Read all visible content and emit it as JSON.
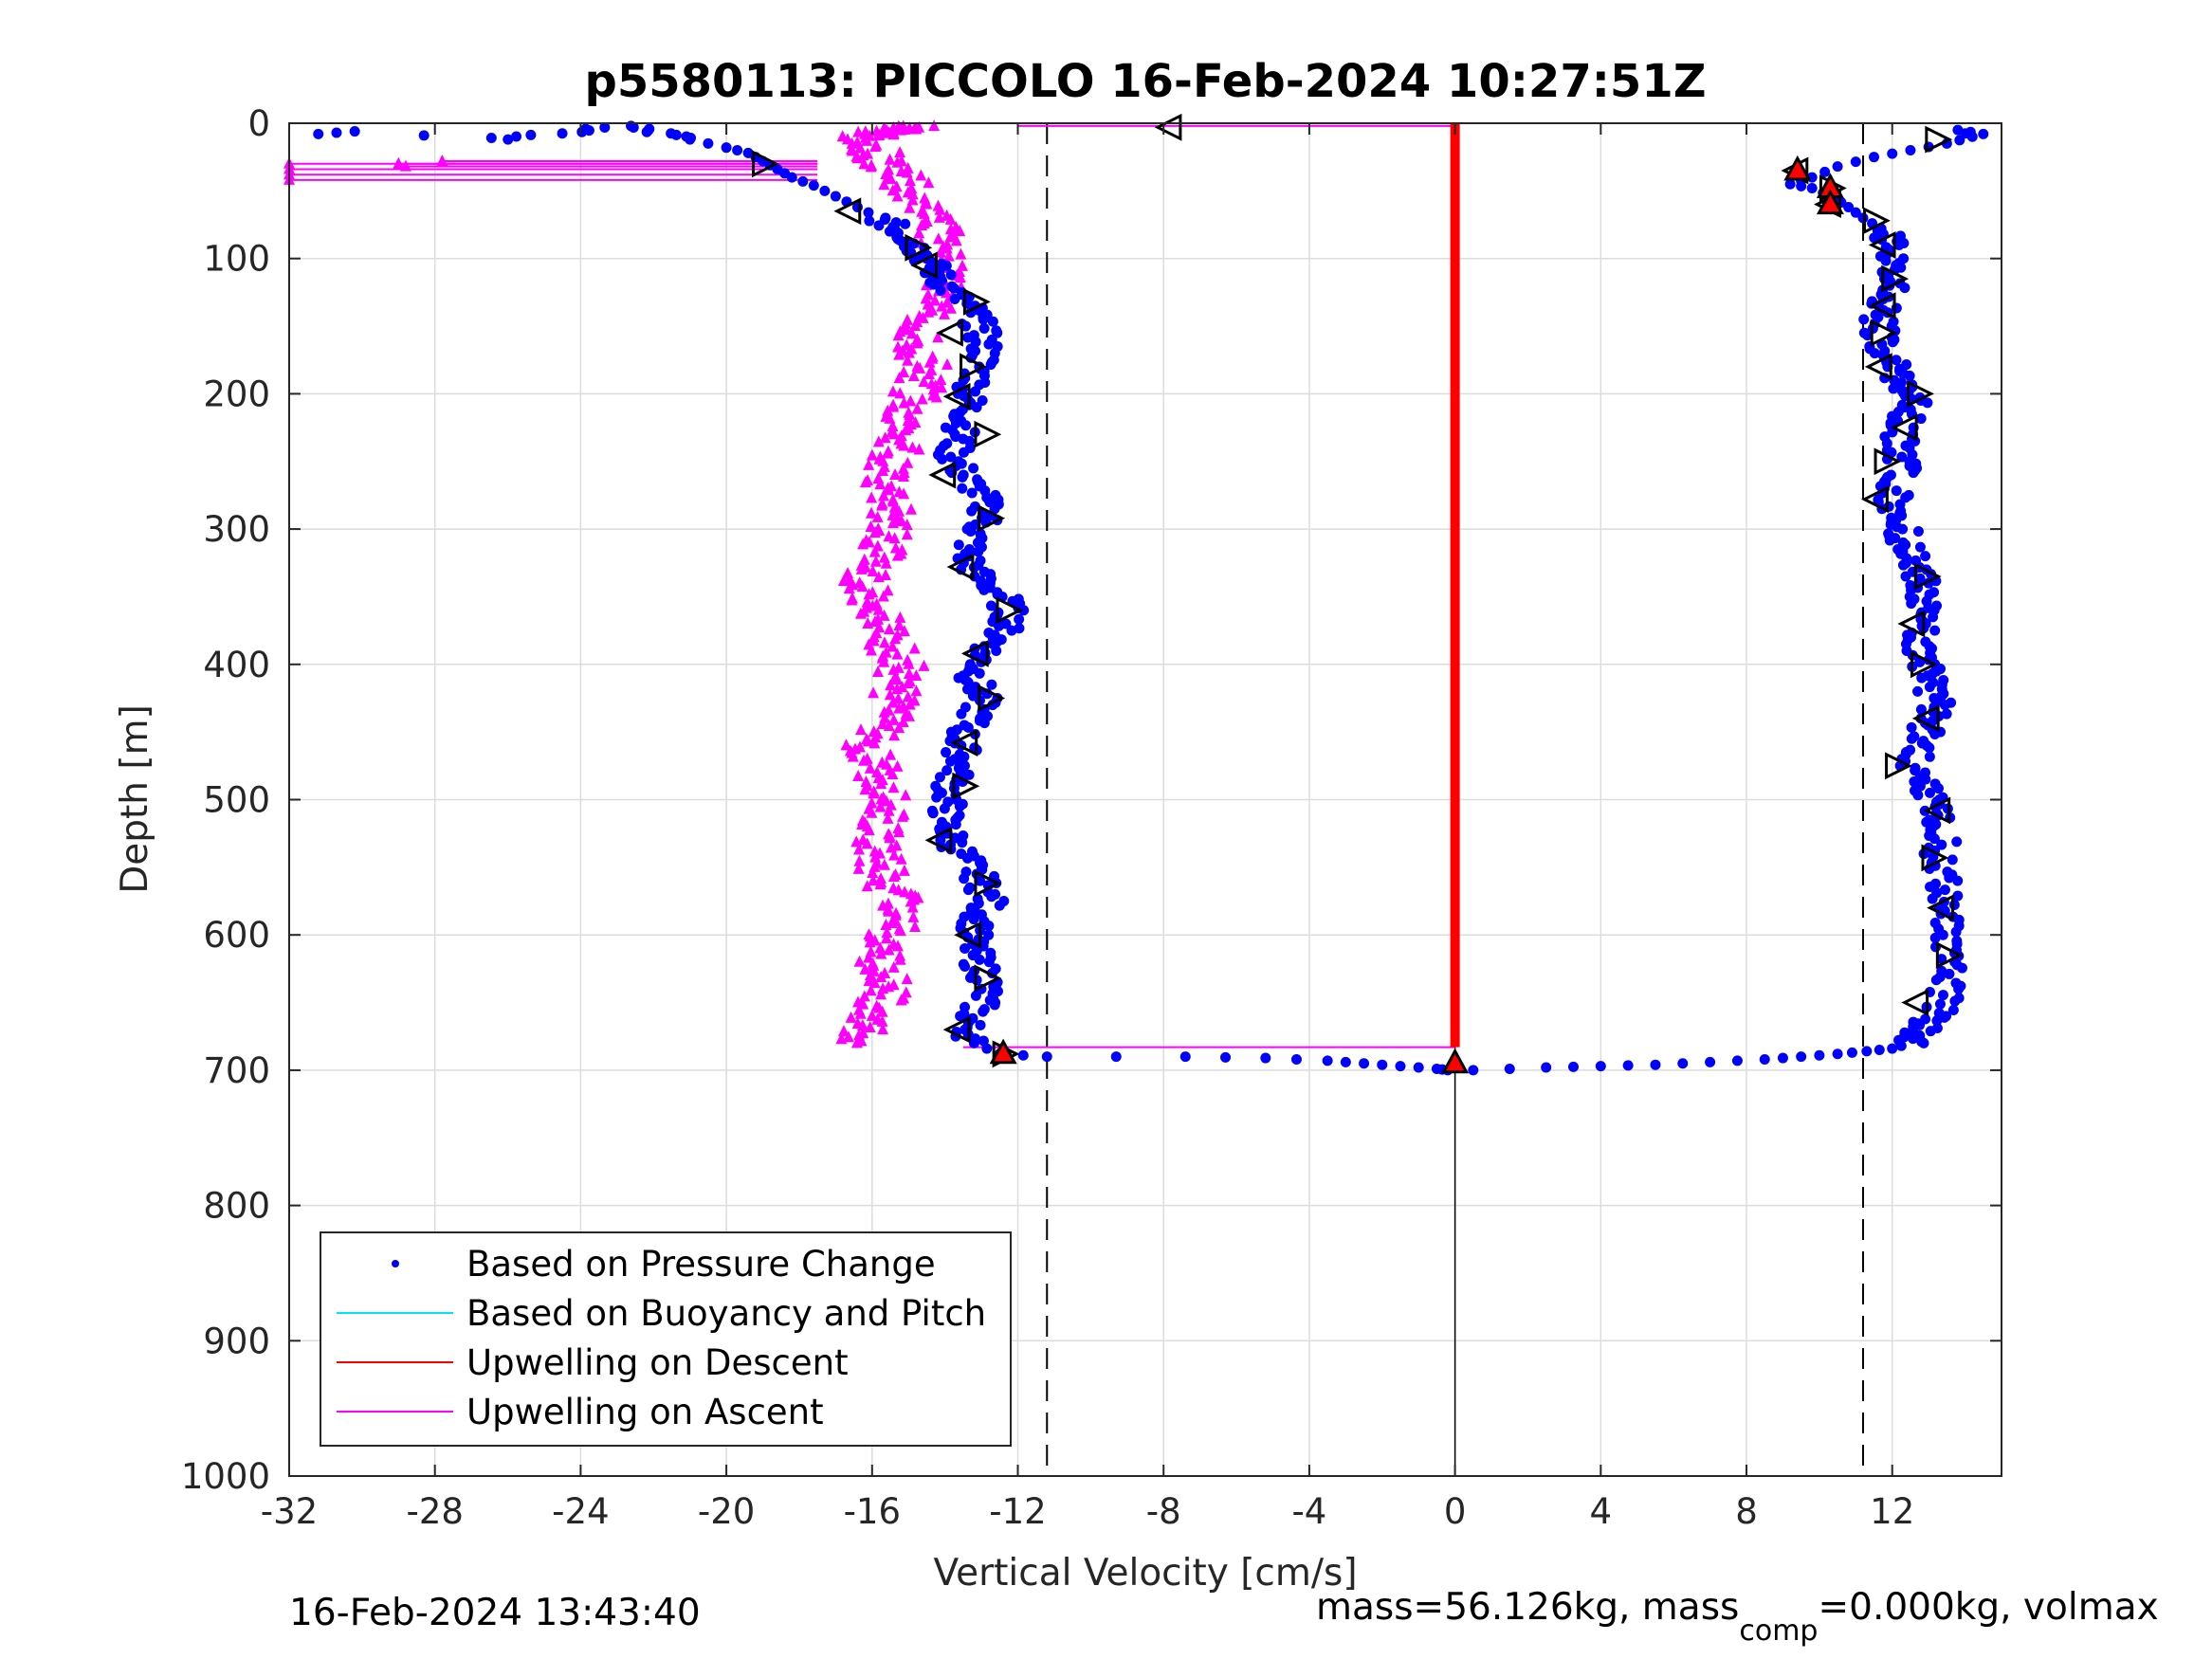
{
  "chart_data": {
    "type": "scatter",
    "title": "p5580113: PICCOLO 16-Feb-2024 10:27:51Z",
    "xlabel": "Vertical Velocity [cm/s]",
    "ylabel": "Depth [m]",
    "xlim": [
      -32,
      15
    ],
    "ylim": [
      0,
      1000
    ],
    "y_reversed": true,
    "grid": true,
    "xticks": [
      -32,
      -28,
      -24,
      -20,
      -16,
      -12,
      -8,
      -4,
      0,
      4,
      8,
      12
    ],
    "yticks": [
      0,
      100,
      200,
      300,
      400,
      500,
      600,
      700,
      800,
      900,
      1000
    ],
    "dashed_lines_x": [
      -11.2,
      11.2
    ],
    "zero_line_x": 0,
    "legend_position": "bottom-left",
    "legend": [
      {
        "label": "Based on Pressure Change",
        "marker": "dot",
        "color": "#0000ff"
      },
      {
        "label": "Based on Buoyancy and Pitch",
        "marker": "line",
        "color": "#00e5ee"
      },
      {
        "label": "Upwelling on Descent",
        "marker": "line",
        "color": "#ff0000"
      },
      {
        "label": "Upwelling on Ascent",
        "marker": "line",
        "color": "#ff00ff"
      }
    ],
    "series": [
      {
        "name": "Based on Pressure Change (descent)",
        "color": "#0000ff",
        "points": [
          [
            -31.2,
            8
          ],
          [
            -30.2,
            6
          ],
          [
            -26.4,
            12
          ],
          [
            -22.8,
            2
          ],
          [
            -21,
            12
          ],
          [
            -20,
            18
          ],
          [
            -19.4,
            22
          ],
          [
            -19,
            28
          ],
          [
            -18.6,
            34
          ],
          [
            -18.2,
            40
          ],
          [
            -17.6,
            46
          ],
          [
            -17,
            54
          ],
          [
            -16.4,
            62
          ],
          [
            -15.8,
            70
          ],
          [
            -15.2,
            80
          ],
          [
            -14.8,
            90
          ],
          [
            -14.5,
            100
          ],
          [
            -14.2,
            112
          ],
          [
            -13.8,
            125
          ],
          [
            -13.2,
            140
          ],
          [
            -13,
            155
          ],
          [
            -12.9,
            170
          ],
          [
            -13.1,
            185
          ],
          [
            -13.3,
            200
          ],
          [
            -13.4,
            215
          ],
          [
            -13.6,
            230
          ],
          [
            -13.8,
            245
          ],
          [
            -13.5,
            260
          ],
          [
            -13,
            275
          ],
          [
            -12.8,
            290
          ],
          [
            -13.2,
            305
          ],
          [
            -13.4,
            320
          ],
          [
            -13.1,
            335
          ],
          [
            -12.4,
            350
          ],
          [
            -12.2,
            365
          ],
          [
            -12.5,
            380
          ],
          [
            -13,
            395
          ],
          [
            -13.2,
            410
          ],
          [
            -13,
            425
          ],
          [
            -13.2,
            440
          ],
          [
            -13.6,
            455
          ],
          [
            -13.5,
            470
          ],
          [
            -13.8,
            485
          ],
          [
            -13.9,
            500
          ],
          [
            -14,
            515
          ],
          [
            -13.8,
            530
          ],
          [
            -13.4,
            545
          ],
          [
            -13,
            560
          ],
          [
            -12.8,
            575
          ],
          [
            -13.1,
            590
          ],
          [
            -13.3,
            605
          ],
          [
            -13.1,
            620
          ],
          [
            -12.8,
            635
          ],
          [
            -13,
            650
          ],
          [
            -13.4,
            665
          ],
          [
            -13.2,
            680
          ],
          [
            -12.5,
            688
          ],
          [
            -11.2,
            690
          ],
          [
            -7.4,
            690
          ],
          [
            -5.2,
            691
          ],
          [
            -3.5,
            693
          ],
          [
            -2.5,
            695
          ],
          [
            -1.5,
            697
          ],
          [
            -0.5,
            699
          ],
          [
            -0.2,
            700
          ]
        ]
      },
      {
        "name": "Based on Pressure Change (ascent)",
        "color": "#0000ff",
        "points": [
          [
            0.5,
            700
          ],
          [
            2.5,
            698
          ],
          [
            4,
            697
          ],
          [
            5.5,
            696
          ],
          [
            7,
            694
          ],
          [
            8.5,
            692
          ],
          [
            9.5,
            690
          ],
          [
            10.5,
            688
          ],
          [
            11.3,
            686
          ],
          [
            12,
            684
          ],
          [
            12.5,
            680
          ],
          [
            12.8,
            670
          ],
          [
            13.2,
            660
          ],
          [
            13.5,
            640
          ],
          [
            13.6,
            620
          ],
          [
            13.5,
            600
          ],
          [
            13.4,
            580
          ],
          [
            13.5,
            560
          ],
          [
            13.3,
            540
          ],
          [
            13.4,
            520
          ],
          [
            13.1,
            505
          ],
          [
            12.8,
            490
          ],
          [
            12.6,
            475
          ],
          [
            12.8,
            460
          ],
          [
            13,
            445
          ],
          [
            13.2,
            430
          ],
          [
            13.1,
            415
          ],
          [
            12.9,
            400
          ],
          [
            12.8,
            385
          ],
          [
            12.7,
            370
          ],
          [
            12.8,
            355
          ],
          [
            12.9,
            340
          ],
          [
            12.6,
            325
          ],
          [
            12.4,
            310
          ],
          [
            12.2,
            295
          ],
          [
            12,
            280
          ],
          [
            12.1,
            265
          ],
          [
            12.3,
            250
          ],
          [
            12.2,
            235
          ],
          [
            12.4,
            220
          ],
          [
            12.6,
            205
          ],
          [
            12.4,
            195
          ],
          [
            12,
            180
          ],
          [
            11.8,
            165
          ],
          [
            11.6,
            150
          ],
          [
            11.8,
            135
          ],
          [
            12,
            120
          ],
          [
            12.1,
            105
          ],
          [
            11.9,
            90
          ],
          [
            11.7,
            78
          ],
          [
            11.2,
            70
          ],
          [
            10.8,
            62
          ],
          [
            10.4,
            55
          ],
          [
            9.8,
            48
          ],
          [
            9.2,
            45
          ],
          [
            9.8,
            40
          ],
          [
            10.5,
            32
          ],
          [
            11.5,
            25
          ],
          [
            12.5,
            20
          ],
          [
            13.5,
            15
          ],
          [
            14.2,
            10
          ],
          [
            13.8,
            5
          ],
          [
            14.5,
            8
          ]
        ]
      },
      {
        "name": "Upwelling on Ascent",
        "color": "#ff00ff",
        "points": [
          [
            -16.4,
            680
          ],
          [
            -16,
            660
          ],
          [
            -15.6,
            640
          ],
          [
            -15.8,
            620
          ],
          [
            -15.5,
            600
          ],
          [
            -15.2,
            580
          ],
          [
            -15.6,
            560
          ],
          [
            -15.9,
            540
          ],
          [
            -15.7,
            520
          ],
          [
            -15.4,
            500
          ],
          [
            -15.8,
            480
          ],
          [
            -16.1,
            460
          ],
          [
            -15.6,
            440
          ],
          [
            -15.4,
            420
          ],
          [
            -15.2,
            400
          ],
          [
            -15.6,
            380
          ],
          [
            -15.8,
            360
          ],
          [
            -16.2,
            340
          ],
          [
            -15.8,
            320
          ],
          [
            -15.6,
            300
          ],
          [
            -15.5,
            280
          ],
          [
            -15.7,
            260
          ],
          [
            -15.3,
            240
          ],
          [
            -15,
            220
          ],
          [
            -14.8,
            200
          ],
          [
            -14.5,
            180
          ],
          [
            -14.8,
            160
          ],
          [
            -14.4,
            140
          ],
          [
            -14,
            120
          ],
          [
            -13.8,
            100
          ],
          [
            -14.2,
            80
          ],
          [
            -14.6,
            60
          ],
          [
            -15.2,
            40
          ],
          [
            -15.8,
            25
          ],
          [
            -16.2,
            10
          ],
          [
            -15.5,
            5
          ],
          [
            -14.8,
            2
          ]
        ]
      }
    ],
    "spikes_ascent_upper": [
      [
        -32,
        30
      ],
      [
        -32,
        34
      ],
      [
        -32,
        38
      ],
      [
        -32,
        42
      ],
      [
        -29,
        30
      ],
      [
        -27.8,
        28
      ],
      [
        -28.8,
        32
      ]
    ],
    "bottom_turn": {
      "depth": 683,
      "from_x": -13.5,
      "to_x": 0
    },
    "top_turn": {
      "depth": 2,
      "from_x": -12,
      "to_x": 0
    },
    "upwelling_descent_x": 0,
    "triangles_descent": [
      [
        -19,
        30
      ],
      [
        -16.6,
        65
      ],
      [
        -14.8,
        92
      ],
      [
        -14.5,
        105
      ],
      [
        -13.2,
        132
      ],
      [
        -13.8,
        155
      ],
      [
        -13.3,
        180
      ],
      [
        -13.6,
        202
      ],
      [
        -12.9,
        230
      ],
      [
        -14,
        260
      ],
      [
        -12.8,
        292
      ],
      [
        -13.5,
        328
      ],
      [
        -12.3,
        360
      ],
      [
        -13.1,
        392
      ],
      [
        -12.8,
        425
      ],
      [
        -13.4,
        458
      ],
      [
        -13.5,
        490
      ],
      [
        -14.1,
        530
      ],
      [
        -12.9,
        562
      ],
      [
        -13.3,
        600
      ],
      [
        -12.9,
        632
      ],
      [
        -13.6,
        670
      ],
      [
        -12.4,
        688
      ]
    ],
    "triangles_ascent": [
      [
        -7.8,
        3
      ],
      [
        13.2,
        12
      ],
      [
        9.4,
        35
      ],
      [
        10.3,
        48
      ],
      [
        10.3,
        60
      ],
      [
        11.5,
        72
      ],
      [
        11.8,
        90
      ],
      [
        12,
        115
      ],
      [
        11.8,
        135
      ],
      [
        11.7,
        155
      ],
      [
        11.7,
        180
      ],
      [
        12.7,
        200
      ],
      [
        12.4,
        225
      ],
      [
        11.8,
        250
      ],
      [
        11.6,
        278
      ],
      [
        12.9,
        335
      ],
      [
        12.6,
        370
      ],
      [
        12.8,
        400
      ],
      [
        13,
        440
      ],
      [
        12.1,
        475
      ],
      [
        13.3,
        508
      ],
      [
        13.1,
        543
      ],
      [
        13.4,
        580
      ],
      [
        13.5,
        615
      ],
      [
        12.7,
        650
      ]
    ],
    "red_markers": [
      [
        9.4,
        35
      ],
      [
        10.3,
        48
      ],
      [
        10.3,
        60
      ],
      [
        -12.4,
        688
      ],
      [
        0,
        695
      ]
    ],
    "footer_left": "16-Feb-2024 13:43:40",
    "footer_right_main": "mass=56.126kg, mass",
    "footer_right_sub": "comp",
    "footer_right_rest": "=0.000kg, volmax"
  },
  "colors": {
    "pressure": "#0000ff",
    "buoyancy": "#00e5ee",
    "descent": "#ff0000",
    "ascent": "#ff00ff",
    "grid": "#dcdcdc",
    "axis": "#262626"
  }
}
